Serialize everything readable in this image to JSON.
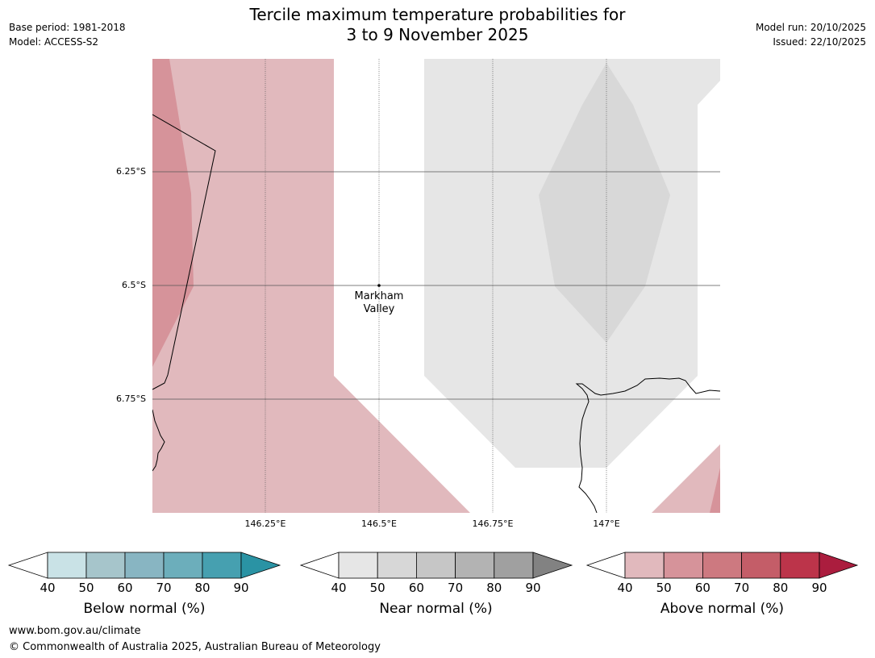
{
  "title_line1": "Tercile maximum temperature probabilities for",
  "title_line2": "3 to 9 November 2025",
  "base_period": "Base period: 1981-2018",
  "model": "Model: ACCESS-S2",
  "model_run": "Model run: 20/10/2025",
  "issued": "Issued: 22/10/2025",
  "map": {
    "lat_labels": [
      "6.25°S",
      "6.5°S",
      "6.75°S"
    ],
    "lon_labels": [
      "146.25°E",
      "146.5°E",
      "146.75°E",
      "147°E"
    ],
    "place": {
      "line1": "Markham",
      "line2": "Valley"
    }
  },
  "colorbars": [
    {
      "title": "Below normal (%)",
      "ticks": [
        "40",
        "50",
        "60",
        "70",
        "80",
        "90"
      ],
      "colors": [
        "#c9e2e6",
        "#a6c5cb",
        "#88b5c2",
        "#6caebb",
        "#46a0b0",
        "#2a93a4"
      ]
    },
    {
      "title": "Near normal (%)",
      "ticks": [
        "40",
        "50",
        "60",
        "70",
        "80",
        "90"
      ],
      "colors": [
        "#e6e6e6",
        "#d7d7d7",
        "#c6c6c6",
        "#b3b3b3",
        "#a0a0a0",
        "#828282"
      ]
    },
    {
      "title": "Above normal (%)",
      "ticks": [
        "40",
        "50",
        "60",
        "70",
        "80",
        "90"
      ],
      "colors": [
        "#e1b9bd",
        "#d6939a",
        "#cd7980",
        "#c45d68",
        "#bc344a",
        "#ab1d3e"
      ]
    }
  ],
  "footer": {
    "url": "www.bom.gov.au/climate",
    "copyright": "© Commonwealth of Australia 2025, Australian Bureau of Meteorology"
  }
}
